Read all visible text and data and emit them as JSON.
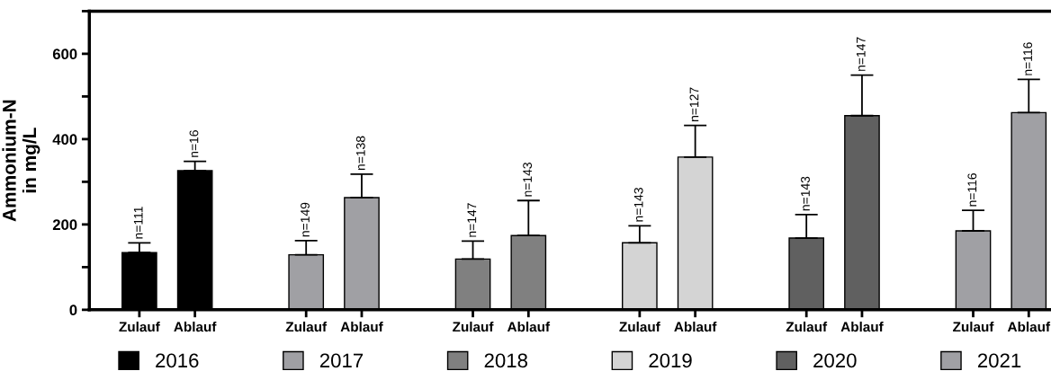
{
  "chart_data": {
    "type": "bar",
    "ylabel": "Ammonium-N\nin mg/L",
    "categories": [
      "Zulauf",
      "Ablauf",
      "Zulauf",
      "Ablauf",
      "Zulauf",
      "Ablauf",
      "Zulauf",
      "Ablauf",
      "Zulauf",
      "Ablauf",
      "Zulauf",
      "Ablauf"
    ],
    "series": [
      {
        "name": "2016",
        "color": "#000000",
        "values": [
          134,
          326,
          null,
          null,
          null,
          null,
          null,
          null,
          null,
          null,
          null,
          null
        ],
        "errors": [
          [
            134,
            157
          ],
          [
            326,
            348
          ],
          null,
          null,
          null,
          null,
          null,
          null,
          null,
          null,
          null,
          null
        ]
      },
      {
        "name": "2017",
        "color": "#a0a0a4",
        "values": [
          null,
          null,
          129,
          263,
          null,
          null,
          null,
          null,
          null,
          null,
          null,
          null
        ],
        "errors": [
          null,
          null,
          [
            129,
            162
          ],
          [
            263,
            318
          ],
          null,
          null,
          null,
          null,
          null,
          null,
          null,
          null
        ]
      },
      {
        "name": "2018",
        "color": "#808080",
        "values": [
          null,
          null,
          null,
          null,
          119,
          174,
          null,
          null,
          null,
          null,
          null,
          null
        ],
        "errors": [
          null,
          null,
          null,
          null,
          [
            119,
            161
          ],
          [
            174,
            256
          ],
          null,
          null,
          null,
          null,
          null,
          null
        ]
      },
      {
        "name": "2019",
        "color": "#d4d4d4",
        "values": [
          null,
          null,
          null,
          null,
          null,
          null,
          157,
          358,
          null,
          null,
          null,
          null
        ],
        "errors": [
          null,
          null,
          null,
          null,
          null,
          null,
          [
            157,
            197
          ],
          [
            358,
            432
          ],
          null,
          null,
          null,
          null
        ]
      },
      {
        "name": "2020",
        "color": "#606060",
        "values": [
          null,
          null,
          null,
          null,
          null,
          null,
          null,
          null,
          168,
          455,
          null,
          null
        ],
        "errors": [
          null,
          null,
          null,
          null,
          null,
          null,
          null,
          null,
          [
            168,
            223
          ],
          [
            455,
            550
          ],
          null,
          null
        ]
      },
      {
        "name": "2021",
        "color": "#a0a0a4",
        "values": [
          null,
          null,
          null,
          null,
          null,
          null,
          null,
          null,
          null,
          null,
          185,
          462
        ],
        "errors": [
          null,
          null,
          null,
          null,
          null,
          null,
          null,
          null,
          null,
          null,
          [
            185,
            233
          ],
          [
            462,
            540
          ]
        ]
      }
    ],
    "ylim": [
      0,
      700
    ],
    "yticks": [
      0,
      {
        "value": 100,
        "label": null
      },
      200,
      {
        "value": 300,
        "label": null
      },
      400,
      {
        "value": 500,
        "label": null
      },
      600,
      {
        "value": 700,
        "label": null
      }
    ],
    "annotations": [
      "n=111",
      "n=16",
      "n=149",
      "n=138",
      "n=147",
      "n=143",
      "n=143",
      "n=127",
      "n=143",
      "n=147",
      "n=116",
      "n=116"
    ],
    "grid": false,
    "legend": "bottom"
  }
}
